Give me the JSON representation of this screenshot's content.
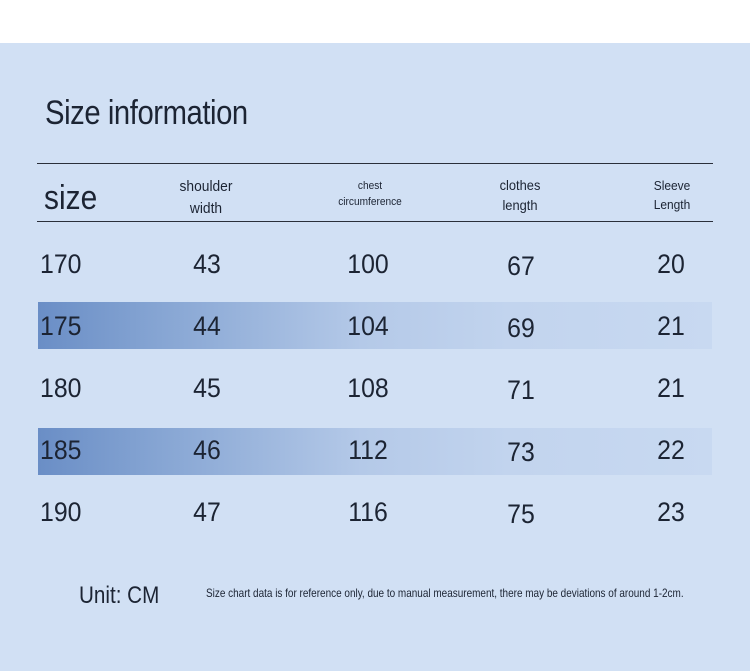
{
  "title": "Size information",
  "headers": {
    "size": "size",
    "shoulder": [
      "shoulder",
      "width"
    ],
    "chest": [
      "chest",
      "circumference"
    ],
    "clothes": [
      "clothes",
      "length"
    ],
    "sleeve": [
      "Sleeve",
      "Length"
    ]
  },
  "rows": [
    [
      "170",
      "43",
      "100",
      "67",
      "20"
    ],
    [
      "175",
      "44",
      "104",
      "69",
      "21"
    ],
    [
      "180",
      "45",
      "108",
      "71",
      "21"
    ],
    [
      "185",
      "46",
      "112",
      "73",
      "22"
    ],
    [
      "190",
      "47",
      "116",
      "75",
      "23"
    ]
  ],
  "unit": "Unit: CM",
  "note": "Size chart data is for reference only, due to manual measurement, there may be deviations of around 1-2cm.",
  "colors": {
    "panel": "#d1e0f4",
    "band_start": "#6a8ec6",
    "band_end": "#c8d9f1",
    "text": "#1c2433"
  }
}
